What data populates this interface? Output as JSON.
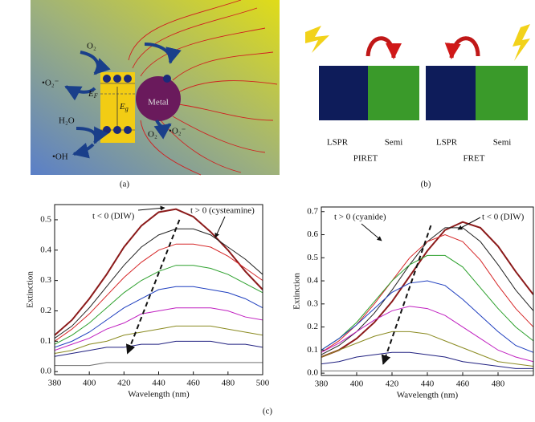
{
  "figure": {
    "panel_a_label": "(a)",
    "panel_b_label": "(b)",
    "panel_c_label": "(c)"
  },
  "diagram_a": {
    "o2_top": "O₂",
    "superoxide_left": "•O₂⁻",
    "water": "H₂O",
    "hydroxyl": "•OH",
    "fermi": {
      "symbol": "E",
      "subscript": "F"
    },
    "gap": {
      "symbol": "E",
      "subscript": "g"
    },
    "metal": "Metal",
    "o2_bottom": "O₂",
    "superoxide_right": "•O₂⁻"
  },
  "diagram_b": {
    "piret": {
      "left": "LSPR",
      "right": "Semi",
      "title": "PIRET"
    },
    "fret": {
      "left": "LSPR",
      "right": "Semi",
      "title": "FRET"
    }
  },
  "chart_data": [
    {
      "type": "line",
      "xlabel": "Wavelength (nm)",
      "ylabel": "Extinction",
      "annotations": [
        "t < 0 (DIW)",
        "t > 0 (cysteamine)"
      ],
      "x": [
        380,
        390,
        400,
        410,
        420,
        430,
        440,
        450,
        460,
        470,
        480,
        490,
        500
      ],
      "xlim": [
        380,
        500
      ],
      "xticks": [
        380,
        400,
        420,
        440,
        460,
        480,
        500
      ],
      "ylim": [
        -0.01,
        0.55
      ],
      "yticks": [
        {
          "value": 0,
          "label": "0.0"
        },
        0.1,
        0.2,
        0.3,
        0.4,
        0.5
      ],
      "series": [
        {
          "color": "#8b1a1a",
          "values": [
            0.12,
            0.17,
            0.24,
            0.32,
            0.41,
            0.48,
            0.525,
            0.535,
            0.51,
            0.46,
            0.4,
            0.33,
            0.27
          ]
        },
        {
          "color": "#222222",
          "values": [
            0.11,
            0.15,
            0.21,
            0.28,
            0.35,
            0.41,
            0.45,
            0.47,
            0.47,
            0.45,
            0.41,
            0.37,
            0.32
          ]
        },
        {
          "color": "#d62728",
          "values": [
            0.1,
            0.14,
            0.19,
            0.25,
            0.31,
            0.36,
            0.4,
            0.42,
            0.42,
            0.41,
            0.38,
            0.34,
            0.3
          ]
        },
        {
          "color": "#2ca02c",
          "values": [
            0.09,
            0.12,
            0.16,
            0.21,
            0.26,
            0.3,
            0.33,
            0.35,
            0.35,
            0.34,
            0.32,
            0.29,
            0.26
          ]
        },
        {
          "color": "#1f3fbf",
          "values": [
            0.08,
            0.1,
            0.13,
            0.17,
            0.21,
            0.24,
            0.27,
            0.28,
            0.28,
            0.27,
            0.26,
            0.24,
            0.21
          ]
        },
        {
          "color": "#c020c0",
          "values": [
            0.07,
            0.09,
            0.11,
            0.14,
            0.16,
            0.19,
            0.2,
            0.21,
            0.21,
            0.21,
            0.2,
            0.18,
            0.17
          ]
        },
        {
          "color": "#8a8a20",
          "values": [
            0.06,
            0.07,
            0.09,
            0.1,
            0.12,
            0.13,
            0.14,
            0.15,
            0.15,
            0.15,
            0.14,
            0.13,
            0.12
          ]
        },
        {
          "color": "#202080",
          "values": [
            0.05,
            0.06,
            0.07,
            0.08,
            0.08,
            0.09,
            0.09,
            0.1,
            0.1,
            0.1,
            0.09,
            0.09,
            0.08
          ]
        },
        {
          "color": "#707070",
          "values": [
            0.02,
            0.02,
            0.02,
            0.03,
            0.03,
            0.03,
            0.03,
            0.03,
            0.03,
            0.03,
            0.03,
            0.03,
            0.03
          ]
        }
      ]
    },
    {
      "type": "line",
      "xlabel": "Wavelength (nm)",
      "ylabel": "Extinction",
      "annotations": [
        "t > 0 (cyanide)",
        "t < 0 (DIW)"
      ],
      "x": [
        380,
        390,
        400,
        410,
        420,
        430,
        440,
        450,
        460,
        470,
        480,
        490,
        500
      ],
      "xlim": [
        380,
        500
      ],
      "xticks": [
        380,
        400,
        420,
        440,
        460,
        480
      ],
      "ylim": [
        -0.01,
        0.72
      ],
      "yticks": [
        {
          "value": 0,
          "label": "0.0"
        },
        0.1,
        0.2,
        0.3,
        0.4,
        0.5,
        0.6,
        0.7
      ],
      "series": [
        {
          "color": "#8b1a1a",
          "values": [
            0.07,
            0.1,
            0.15,
            0.22,
            0.31,
            0.42,
            0.53,
            0.62,
            0.655,
            0.63,
            0.55,
            0.44,
            0.34
          ]
        },
        {
          "color": "#222222",
          "values": [
            0.08,
            0.12,
            0.18,
            0.26,
            0.36,
            0.47,
            0.57,
            0.63,
            0.63,
            0.57,
            0.47,
            0.36,
            0.27
          ]
        },
        {
          "color": "#d62728",
          "values": [
            0.09,
            0.14,
            0.21,
            0.3,
            0.4,
            0.5,
            0.57,
            0.6,
            0.57,
            0.49,
            0.38,
            0.28,
            0.2
          ]
        },
        {
          "color": "#2ca02c",
          "values": [
            0.1,
            0.15,
            0.22,
            0.31,
            0.4,
            0.47,
            0.51,
            0.51,
            0.46,
            0.37,
            0.28,
            0.2,
            0.14
          ]
        },
        {
          "color": "#1f3fbf",
          "values": [
            0.1,
            0.15,
            0.21,
            0.28,
            0.35,
            0.39,
            0.4,
            0.38,
            0.32,
            0.25,
            0.18,
            0.12,
            0.09
          ]
        },
        {
          "color": "#c020c0",
          "values": [
            0.09,
            0.13,
            0.18,
            0.23,
            0.27,
            0.29,
            0.28,
            0.25,
            0.2,
            0.15,
            0.1,
            0.07,
            0.05
          ]
        },
        {
          "color": "#8a8a20",
          "values": [
            0.07,
            0.1,
            0.13,
            0.16,
            0.18,
            0.18,
            0.17,
            0.14,
            0.11,
            0.08,
            0.05,
            0.04,
            0.03
          ]
        },
        {
          "color": "#202080",
          "values": [
            0.04,
            0.05,
            0.07,
            0.08,
            0.09,
            0.09,
            0.08,
            0.07,
            0.05,
            0.04,
            0.03,
            0.02,
            0.02
          ]
        },
        {
          "color": "#707070",
          "values": [
            0.01,
            0.01,
            0.01,
            0.01,
            0.01,
            0.01,
            0.01,
            0.01,
            0.01,
            0.01,
            0.01,
            0.01,
            0.01
          ]
        }
      ]
    }
  ]
}
